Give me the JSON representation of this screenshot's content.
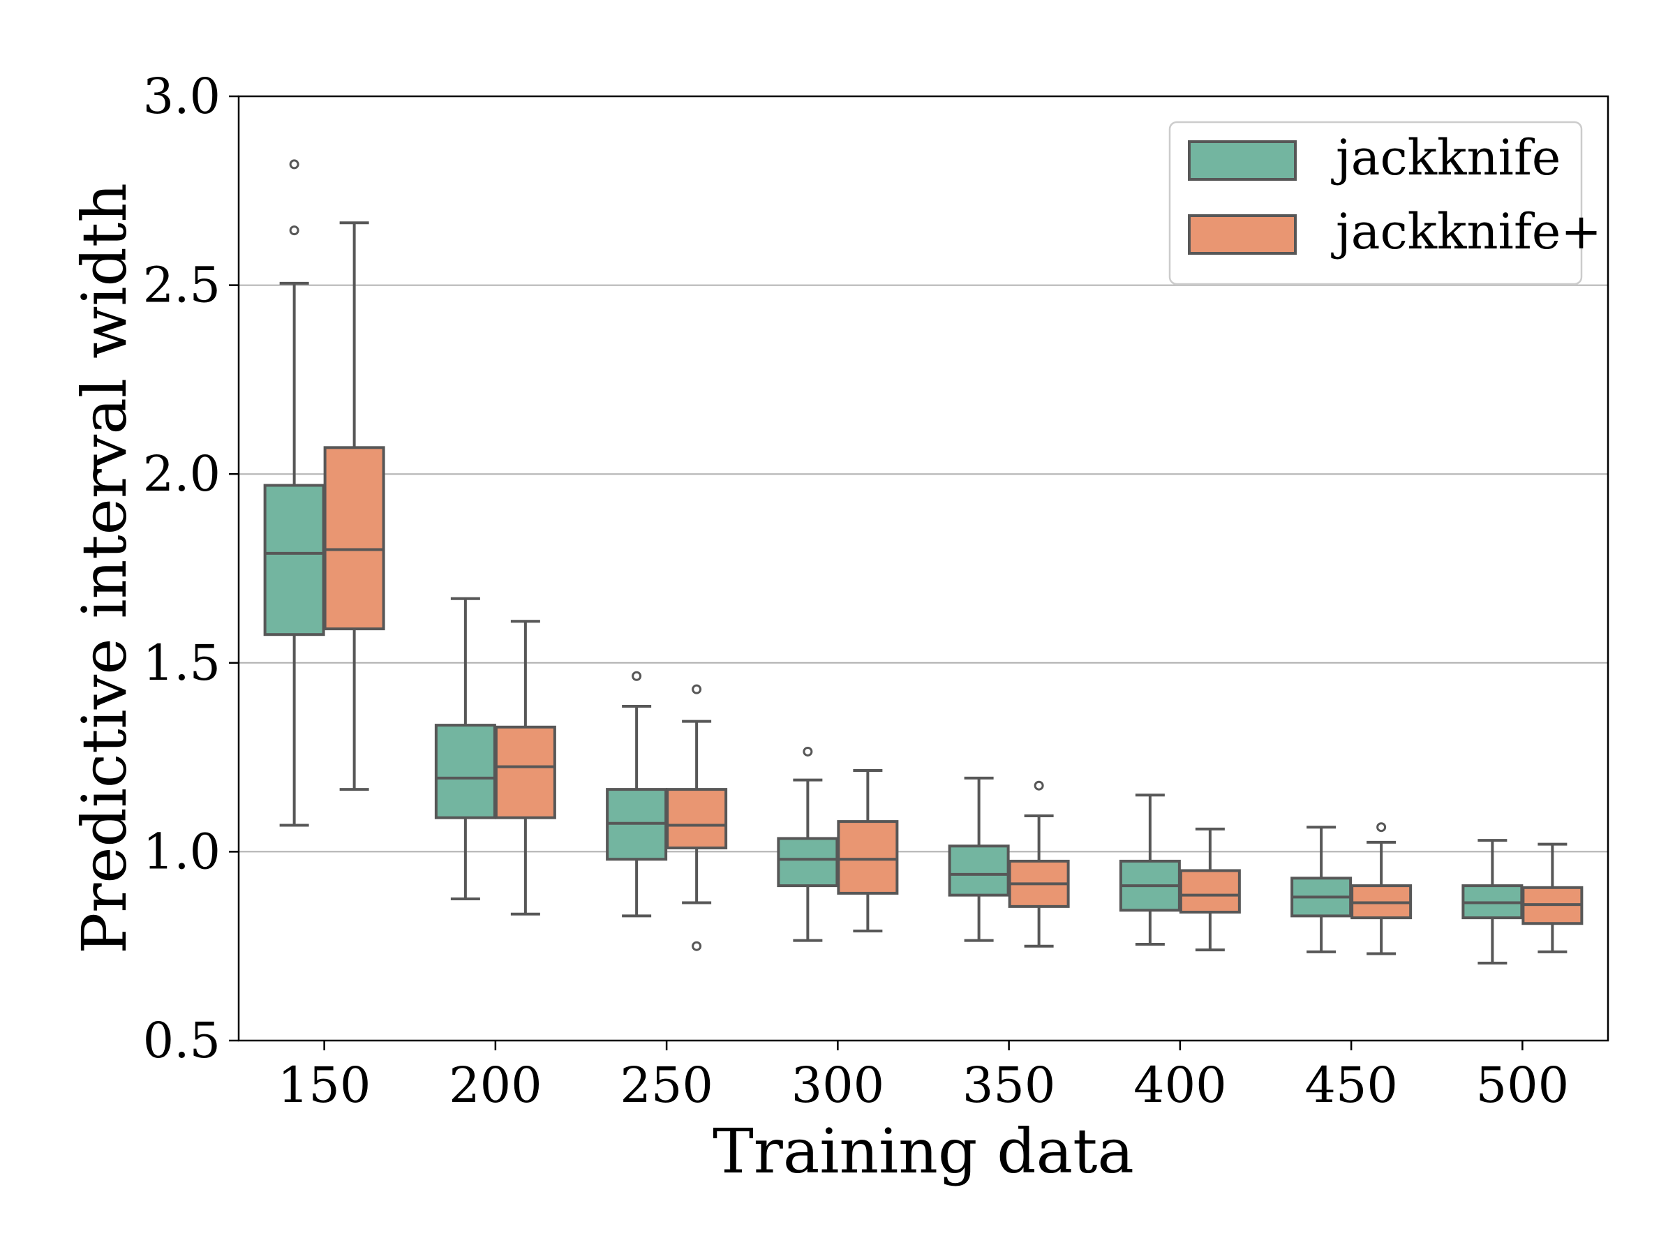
{
  "chart_data": {
    "type": "box",
    "xlabel": "Training data",
    "ylabel": "Predictive interval width",
    "ylim": [
      0.5,
      3.0
    ],
    "yticks": [
      "0.5",
      "1.0",
      "1.5",
      "2.0",
      "2.5",
      "3.0"
    ],
    "categories": [
      "150",
      "200",
      "250",
      "300",
      "350",
      "400",
      "450",
      "500"
    ],
    "grid": "horizontal",
    "legend_position": "top-right",
    "colors": {
      "jackknife": "#73b5a0",
      "jackknife+": "#e99672",
      "edge": "#575757",
      "grid": "#b0b0b0"
    },
    "series": [
      {
        "name": "jackknife",
        "boxes": [
          {
            "whislo": 1.07,
            "q1": 1.575,
            "med": 1.79,
            "q3": 1.97,
            "whishi": 2.505,
            "fliers": [
              2.645,
              2.82
            ]
          },
          {
            "whislo": 0.875,
            "q1": 1.09,
            "med": 1.195,
            "q3": 1.335,
            "whishi": 1.67,
            "fliers": []
          },
          {
            "whislo": 0.83,
            "q1": 0.98,
            "med": 1.075,
            "q3": 1.165,
            "whishi": 1.385,
            "fliers": [
              1.465
            ]
          },
          {
            "whislo": 0.765,
            "q1": 0.91,
            "med": 0.98,
            "q3": 1.035,
            "whishi": 1.19,
            "fliers": [
              1.265
            ]
          },
          {
            "whislo": 0.765,
            "q1": 0.885,
            "med": 0.94,
            "q3": 1.015,
            "whishi": 1.195,
            "fliers": []
          },
          {
            "whislo": 0.755,
            "q1": 0.845,
            "med": 0.91,
            "q3": 0.975,
            "whishi": 1.15,
            "fliers": []
          },
          {
            "whislo": 0.735,
            "q1": 0.83,
            "med": 0.88,
            "q3": 0.93,
            "whishi": 1.065,
            "fliers": []
          },
          {
            "whislo": 0.705,
            "q1": 0.825,
            "med": 0.865,
            "q3": 0.91,
            "whishi": 1.03,
            "fliers": []
          }
        ]
      },
      {
        "name": "jackknife+",
        "boxes": [
          {
            "whislo": 1.165,
            "q1": 1.59,
            "med": 1.8,
            "q3": 2.07,
            "whishi": 2.665,
            "fliers": []
          },
          {
            "whislo": 0.835,
            "q1": 1.09,
            "med": 1.225,
            "q3": 1.33,
            "whishi": 1.61,
            "fliers": []
          },
          {
            "whislo": 0.865,
            "q1": 1.01,
            "med": 1.07,
            "q3": 1.165,
            "whishi": 1.345,
            "fliers": [
              1.43,
              0.75
            ]
          },
          {
            "whislo": 0.79,
            "q1": 0.89,
            "med": 0.98,
            "q3": 1.08,
            "whishi": 1.215,
            "fliers": []
          },
          {
            "whislo": 0.75,
            "q1": 0.855,
            "med": 0.915,
            "q3": 0.975,
            "whishi": 1.095,
            "fliers": [
              1.175
            ]
          },
          {
            "whislo": 0.74,
            "q1": 0.84,
            "med": 0.885,
            "q3": 0.95,
            "whishi": 1.06,
            "fliers": []
          },
          {
            "whislo": 0.73,
            "q1": 0.825,
            "med": 0.865,
            "q3": 0.91,
            "whishi": 1.025,
            "fliers": [
              1.065
            ]
          },
          {
            "whislo": 0.735,
            "q1": 0.81,
            "med": 0.86,
            "q3": 0.905,
            "whishi": 1.02,
            "fliers": []
          }
        ]
      }
    ]
  }
}
